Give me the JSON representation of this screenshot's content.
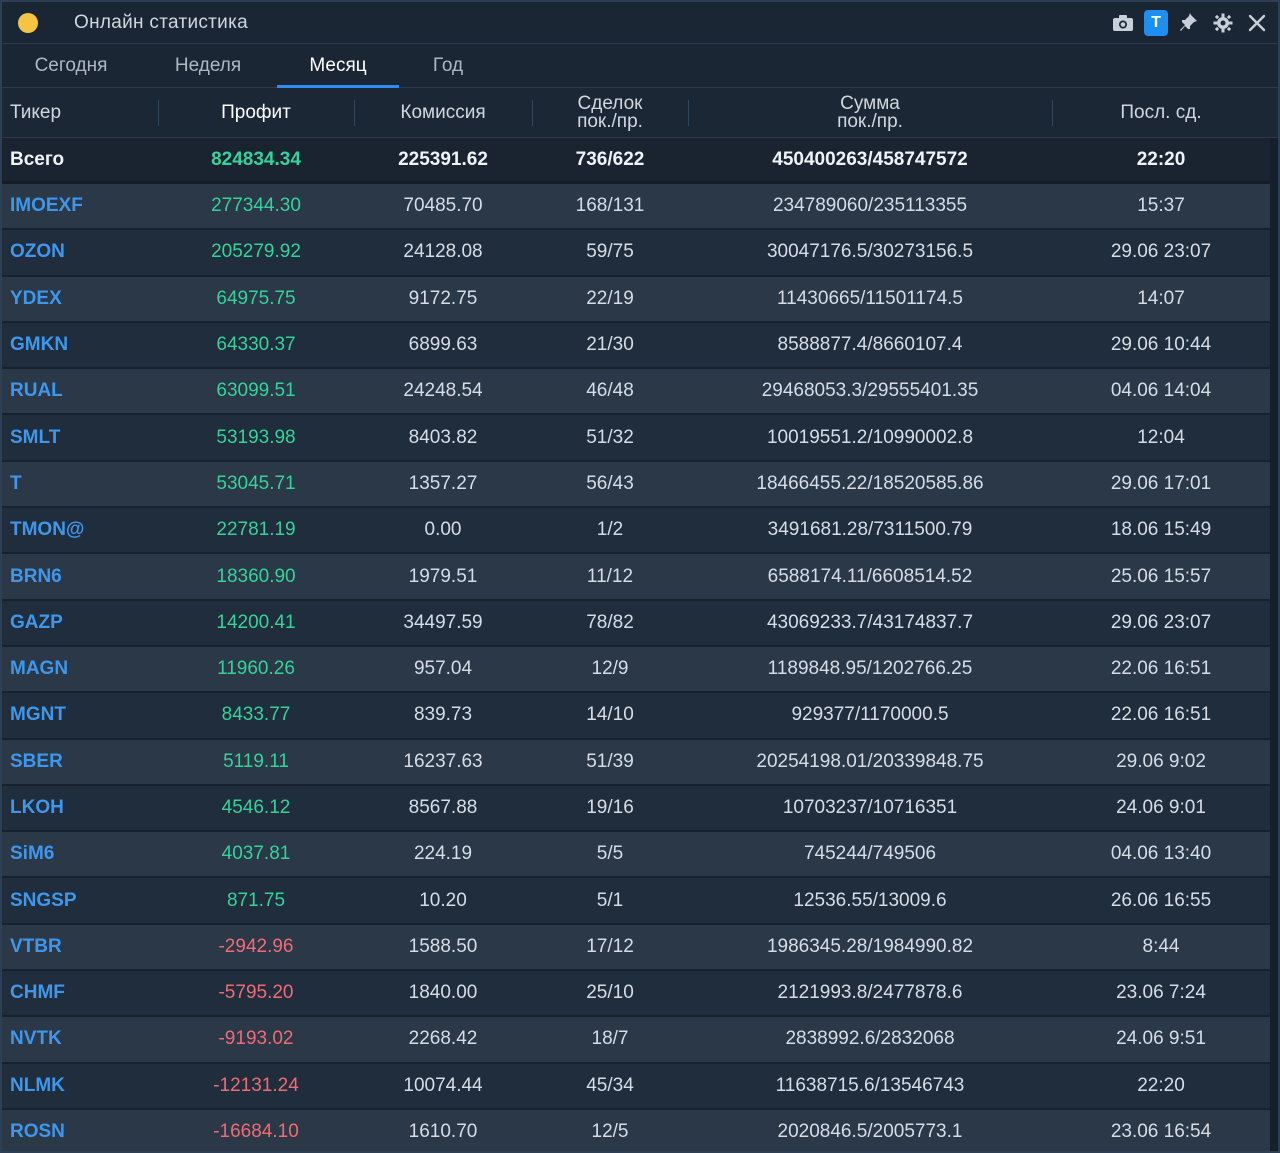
{
  "window": {
    "title": "Онлайн статистика"
  },
  "title_icons": [
    "camera-icon",
    "t-badge",
    "pin-icon",
    "gear-icon",
    "close-icon"
  ],
  "title_badge": "T",
  "tabs": [
    {
      "label": "Сегодня",
      "active": false
    },
    {
      "label": "Неделя",
      "active": false
    },
    {
      "label": "Месяц",
      "active": true
    },
    {
      "label": "Год",
      "active": false
    }
  ],
  "columns": {
    "ticker": "Тикер",
    "profit": "Профит",
    "commission": "Комиссия",
    "deals_l1": "Сделок",
    "deals_l2": "пок./пр.",
    "sum_l1": "Сумма",
    "sum_l2": "пок./пр.",
    "last": "Посл. сд."
  },
  "total": {
    "ticker": "Всего",
    "profit": "824834.34",
    "commission": "225391.62",
    "deals": "736/622",
    "sum": "450400263/458747572",
    "last": "22:20"
  },
  "rows": [
    {
      "ticker": "IMOEXF",
      "profit": "277344.30",
      "commission": "70485.70",
      "deals": "168/131",
      "sum": "234789060/235113355",
      "last": "15:37"
    },
    {
      "ticker": "OZON",
      "profit": "205279.92",
      "commission": "24128.08",
      "deals": "59/75",
      "sum": "30047176.5/30273156.5",
      "last": "29.06 23:07"
    },
    {
      "ticker": "YDEX",
      "profit": "64975.75",
      "commission": "9172.75",
      "deals": "22/19",
      "sum": "11430665/11501174.5",
      "last": "14:07"
    },
    {
      "ticker": "GMKN",
      "profit": "64330.37",
      "commission": "6899.63",
      "deals": "21/30",
      "sum": "8588877.4/8660107.4",
      "last": "29.06 10:44"
    },
    {
      "ticker": "RUAL",
      "profit": "63099.51",
      "commission": "24248.54",
      "deals": "46/48",
      "sum": "29468053.3/29555401.35",
      "last": "04.06 14:04"
    },
    {
      "ticker": "SMLT",
      "profit": "53193.98",
      "commission": "8403.82",
      "deals": "51/32",
      "sum": "10019551.2/10990002.8",
      "last": "12:04"
    },
    {
      "ticker": "T",
      "profit": "53045.71",
      "commission": "1357.27",
      "deals": "56/43",
      "sum": "18466455.22/18520585.86",
      "last": "29.06 17:01"
    },
    {
      "ticker": "TMON@",
      "profit": "22781.19",
      "commission": "0.00",
      "deals": "1/2",
      "sum": "3491681.28/7311500.79",
      "last": "18.06 15:49"
    },
    {
      "ticker": "BRN6",
      "profit": "18360.90",
      "commission": "1979.51",
      "deals": "11/12",
      "sum": "6588174.11/6608514.52",
      "last": "25.06 15:57"
    },
    {
      "ticker": "GAZP",
      "profit": "14200.41",
      "commission": "34497.59",
      "deals": "78/82",
      "sum": "43069233.7/43174837.7",
      "last": "29.06 23:07"
    },
    {
      "ticker": "MAGN",
      "profit": "11960.26",
      "commission": "957.04",
      "deals": "12/9",
      "sum": "1189848.95/1202766.25",
      "last": "22.06 16:51"
    },
    {
      "ticker": "MGNT",
      "profit": "8433.77",
      "commission": "839.73",
      "deals": "14/10",
      "sum": "929377/1170000.5",
      "last": "22.06 16:51"
    },
    {
      "ticker": "SBER",
      "profit": "5119.11",
      "commission": "16237.63",
      "deals": "51/39",
      "sum": "20254198.01/20339848.75",
      "last": "29.06 9:02"
    },
    {
      "ticker": "LKOH",
      "profit": "4546.12",
      "commission": "8567.88",
      "deals": "19/16",
      "sum": "10703237/10716351",
      "last": "24.06 9:01"
    },
    {
      "ticker": "SiM6",
      "profit": "4037.81",
      "commission": "224.19",
      "deals": "5/5",
      "sum": "745244/749506",
      "last": "04.06 13:40"
    },
    {
      "ticker": "SNGSP",
      "profit": "871.75",
      "commission": "10.20",
      "deals": "5/1",
      "sum": "12536.55/13009.6",
      "last": "26.06 16:55"
    },
    {
      "ticker": "VTBR",
      "profit": "-2942.96",
      "commission": "1588.50",
      "deals": "17/12",
      "sum": "1986345.28/1984990.82",
      "last": "8:44"
    },
    {
      "ticker": "CHMF",
      "profit": "-5795.20",
      "commission": "1840.00",
      "deals": "25/10",
      "sum": "2121993.8/2477878.6",
      "last": "23.06 7:24"
    },
    {
      "ticker": "NVTK",
      "profit": "-9193.02",
      "commission": "2268.42",
      "deals": "18/7",
      "sum": "2838992.6/2832068",
      "last": "24.06 9:51"
    },
    {
      "ticker": "NLMK",
      "profit": "-12131.24",
      "commission": "10074.44",
      "deals": "45/34",
      "sum": "11638715.6/13546743",
      "last": "22:20"
    },
    {
      "ticker": "ROSN",
      "profit": "-16684.10",
      "commission": "1610.70",
      "deals": "12/5",
      "sum": "2020846.5/2005773.1",
      "last": "23.06 16:54"
    }
  ],
  "colors": {
    "accent": "#2f8cf0",
    "ticker": "#3f97ec",
    "positive": "#35d29a",
    "negative": "#f06b73",
    "title_dot": "#f5c443"
  }
}
